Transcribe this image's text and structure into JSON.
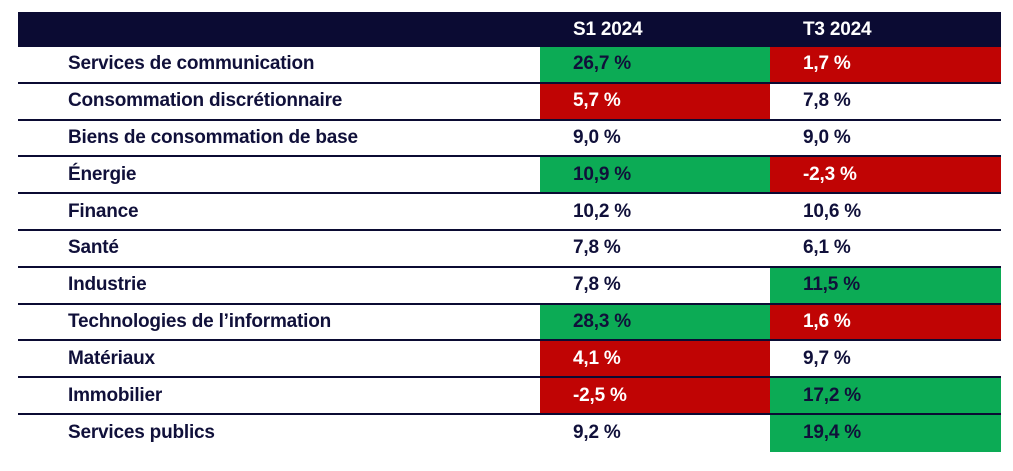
{
  "colors": {
    "header_bg": "#0b0b33",
    "row_line": "#0b0b33",
    "text": "#10103a",
    "positive_bg": "#0cab55",
    "positive_text": "#10103a",
    "negative_bg": "#c00404",
    "negative_text": "#ffffff"
  },
  "table": {
    "header": {
      "s1": "S1 2024",
      "t3": "T3 2024"
    },
    "rows": [
      {
        "sector": "Services de communication",
        "s1": {
          "text": "26,7 %",
          "highlight": "green"
        },
        "t3": {
          "text": "1,7 %",
          "highlight": "red"
        }
      },
      {
        "sector": "Consommation discrétionnaire",
        "s1": {
          "text": "5,7 %",
          "highlight": "red"
        },
        "t3": {
          "text": "7,8 %",
          "highlight": "none"
        }
      },
      {
        "sector": "Biens de consommation de base",
        "s1": {
          "text": "9,0 %",
          "highlight": "none"
        },
        "t3": {
          "text": "9,0 %",
          "highlight": "none"
        }
      },
      {
        "sector": "Énergie",
        "s1": {
          "text": "10,9 %",
          "highlight": "green"
        },
        "t3": {
          "text": "-2,3 %",
          "highlight": "red"
        }
      },
      {
        "sector": "Finance",
        "s1": {
          "text": "10,2 %",
          "highlight": "none"
        },
        "t3": {
          "text": "10,6 %",
          "highlight": "none"
        }
      },
      {
        "sector": "Santé",
        "s1": {
          "text": "7,8 %",
          "highlight": "none"
        },
        "t3": {
          "text": "6,1 %",
          "highlight": "none"
        }
      },
      {
        "sector": "Industrie",
        "s1": {
          "text": "7,8 %",
          "highlight": "none"
        },
        "t3": {
          "text": "11,5 %",
          "highlight": "green"
        }
      },
      {
        "sector": "Technologies de l’information",
        "s1": {
          "text": "28,3 %",
          "highlight": "green"
        },
        "t3": {
          "text": "1,6 %",
          "highlight": "red"
        }
      },
      {
        "sector": "Matériaux",
        "s1": {
          "text": "4,1 %",
          "highlight": "red"
        },
        "t3": {
          "text": "9,7 %",
          "highlight": "none"
        }
      },
      {
        "sector": "Immobilier",
        "s1": {
          "text": "-2,5 %",
          "highlight": "red"
        },
        "t3": {
          "text": "17,2 %",
          "highlight": "green"
        }
      },
      {
        "sector": "Services publics",
        "s1": {
          "text": "9,2 %",
          "highlight": "none"
        },
        "t3": {
          "text": "19,4 %",
          "highlight": "green"
        }
      }
    ]
  },
  "chart_data": {
    "type": "table",
    "title": "",
    "categories": [
      "Services de communication",
      "Consommation discrétionnaire",
      "Biens de consommation de base",
      "Énergie",
      "Finance",
      "Santé",
      "Industrie",
      "Technologies de l’information",
      "Matériaux",
      "Immobilier",
      "Services publics"
    ],
    "series": [
      {
        "name": "S1 2024",
        "values": [
          26.7,
          5.7,
          9.0,
          10.9,
          10.2,
          7.8,
          7.8,
          28.3,
          4.1,
          -2.5,
          9.2
        ]
      },
      {
        "name": "T3 2024",
        "values": [
          1.7,
          7.8,
          9.0,
          -2.3,
          10.6,
          6.1,
          11.5,
          1.6,
          9.7,
          17.2,
          19.4
        ]
      }
    ],
    "highlights": {
      "S1 2024": [
        "green",
        "red",
        "none",
        "green",
        "none",
        "none",
        "none",
        "green",
        "red",
        "red",
        "none"
      ],
      "T3 2024": [
        "red",
        "none",
        "none",
        "red",
        "none",
        "none",
        "green",
        "red",
        "none",
        "green",
        "green"
      ]
    },
    "value_format": "percent, comma decimal, space before %"
  }
}
